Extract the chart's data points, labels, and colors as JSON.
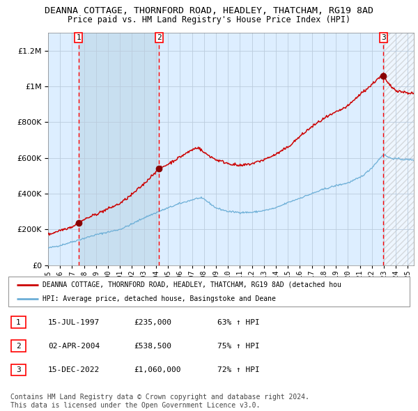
{
  "title": "DEANNA COTTAGE, THORNFORD ROAD, HEADLEY, THATCHAM, RG19 8AD",
  "subtitle": "Price paid vs. HM Land Registry's House Price Index (HPI)",
  "x_start": 1995.0,
  "x_end": 2025.5,
  "y_min": 0,
  "y_max": 1300000,
  "y_ticks": [
    0,
    200000,
    400000,
    600000,
    800000,
    1000000,
    1200000
  ],
  "y_tick_labels": [
    "£0",
    "£200K",
    "£400K",
    "£600K",
    "£800K",
    "£1M",
    "£1.2M"
  ],
  "sale_dates_num": [
    1997.54,
    2004.25,
    2022.96
  ],
  "sale_prices": [
    235000,
    538500,
    1060000
  ],
  "sale_labels": [
    "1",
    "2",
    "3"
  ],
  "hpi_color": "#6baed6",
  "price_color": "#cc0000",
  "bg_color": "#ffffff",
  "plot_bg_color": "#ddeeff",
  "shaded_regions": [
    [
      1997.54,
      2004.25
    ]
  ],
  "hatch_regions": [
    [
      2022.96,
      2025.5
    ]
  ],
  "grid_color": "#bbccdd",
  "legend_line1": "DEANNA COTTAGE, THORNFORD ROAD, HEADLEY, THATCHAM, RG19 8AD (detached hou",
  "legend_line2": "HPI: Average price, detached house, Basingstoke and Deane",
  "table_data": [
    [
      "1",
      "15-JUL-1997",
      "£235,000",
      "63% ↑ HPI"
    ],
    [
      "2",
      "02-APR-2004",
      "£538,500",
      "75% ↑ HPI"
    ],
    [
      "3",
      "15-DEC-2022",
      "£1,060,000",
      "72% ↑ HPI"
    ]
  ],
  "footer_text": "Contains HM Land Registry data © Crown copyright and database right 2024.\nThis data is licensed under the Open Government Licence v3.0.",
  "x_tick_years": [
    1995,
    1996,
    1997,
    1998,
    1999,
    2000,
    2001,
    2002,
    2003,
    2004,
    2005,
    2006,
    2007,
    2008,
    2009,
    2010,
    2011,
    2012,
    2013,
    2014,
    2015,
    2016,
    2017,
    2018,
    2019,
    2020,
    2021,
    2022,
    2023,
    2024,
    2025
  ]
}
